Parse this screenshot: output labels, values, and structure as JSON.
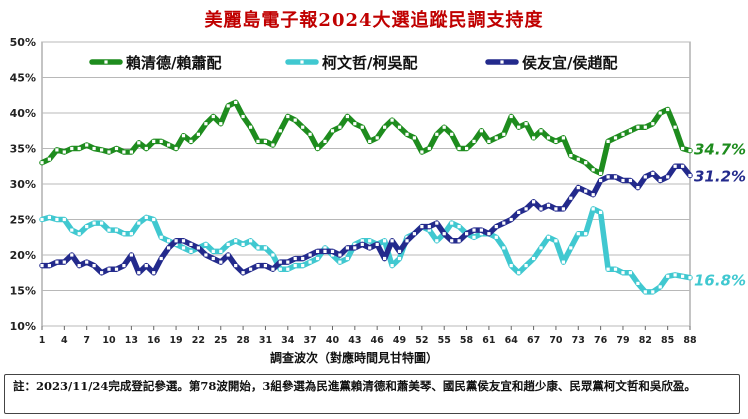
{
  "title": "美麗島電子報2024大選追蹤民調支持度",
  "note": "註：2023/11/24完成登記參選。第78波開始，3組參選為民進黨賴清德和蕭美琴、國民黨侯友宜和趙少康、民眾黨柯文哲和吳欣盈。",
  "chart_data": {
    "type": "line",
    "xlabel": "調查波次（對應時間見甘特圖）",
    "ylabel": "",
    "ylim": [
      10,
      50
    ],
    "yticks": [
      "10%",
      "15%",
      "20%",
      "25%",
      "30%",
      "35%",
      "40%",
      "45%",
      "50%"
    ],
    "xticks": [
      "1",
      "4",
      "7",
      "10",
      "13",
      "16",
      "19",
      "22",
      "25",
      "28",
      "31",
      "34",
      "37",
      "40",
      "43",
      "46",
      "49",
      "52",
      "55",
      "58",
      "61",
      "64",
      "67",
      "70",
      "73",
      "76",
      "79",
      "82",
      "85",
      "88"
    ],
    "grid": true,
    "legend": "top",
    "x": [
      1,
      2,
      3,
      4,
      5,
      6,
      7,
      8,
      9,
      10,
      11,
      12,
      13,
      14,
      15,
      16,
      17,
      18,
      19,
      20,
      21,
      22,
      23,
      24,
      25,
      26,
      27,
      28,
      29,
      30,
      31,
      32,
      33,
      34,
      35,
      36,
      37,
      38,
      39,
      40,
      41,
      42,
      43,
      44,
      45,
      46,
      47,
      48,
      49,
      50,
      51,
      52,
      53,
      54,
      55,
      56,
      57,
      58,
      59,
      60,
      61,
      62,
      63,
      64,
      65,
      66,
      67,
      68,
      69,
      70,
      71,
      72,
      73,
      74,
      75,
      76,
      77,
      78,
      79,
      80,
      81,
      82,
      83,
      84,
      85,
      86,
      87,
      88
    ],
    "series": [
      {
        "name": "賴清德/賴蕭配",
        "color": "#1e8c1e",
        "end_label": "34.7%",
        "values": [
          33,
          33.5,
          34.8,
          34.5,
          35,
          35,
          35.5,
          35,
          34.8,
          34.5,
          35,
          34.5,
          34.5,
          35.8,
          35,
          36,
          36,
          35.5,
          35,
          36.8,
          36,
          37,
          38.5,
          39.5,
          38.5,
          41,
          41.5,
          39.5,
          38,
          36,
          36,
          35.5,
          37.5,
          39.5,
          39,
          38,
          37,
          35,
          36,
          37.5,
          38,
          39.5,
          38.5,
          38,
          36,
          36.5,
          38,
          39,
          38,
          37,
          36.5,
          34.5,
          35,
          37,
          38,
          37,
          35,
          35,
          36,
          37.5,
          36,
          36.5,
          37,
          39.5,
          38,
          38.5,
          36.5,
          37.5,
          36.5,
          36,
          36.5,
          34,
          33.5,
          33,
          32,
          31.5,
          36,
          36.5,
          37,
          37.5,
          38,
          38,
          38.5,
          40,
          40.5,
          38,
          35,
          34.7
        ]
      },
      {
        "name": "柯文哲/柯吳配",
        "color": "#40c8d0",
        "end_label": "16.8%",
        "values": [
          25,
          25.3,
          25,
          25,
          23.5,
          23,
          24,
          24.5,
          24.5,
          23.5,
          23.5,
          23,
          23,
          24.5,
          25.3,
          25,
          22.5,
          22,
          21.5,
          21,
          20.5,
          21,
          21.5,
          20.5,
          20.5,
          21.5,
          22,
          21.5,
          22,
          21,
          21,
          20,
          18,
          18,
          18.5,
          18.5,
          19,
          19.5,
          21,
          20,
          19,
          19.5,
          21.5,
          22,
          22,
          21.5,
          22,
          18.5,
          19.5,
          22.5,
          23,
          24,
          23.5,
          22,
          23,
          24.5,
          24,
          23,
          22.5,
          23,
          23,
          22.5,
          21,
          18.5,
          17.5,
          18.5,
          19.5,
          21,
          22.5,
          22,
          19,
          21,
          23,
          23,
          26.5,
          26,
          18,
          18,
          17.5,
          17.5,
          16,
          14.8,
          14.8,
          15.5,
          17,
          17.2,
          17,
          16.8
        ]
      },
      {
        "name": "侯友宜/侯趙配",
        "color": "#232a8c",
        "end_label": "31.2%",
        "values": [
          18.5,
          18.5,
          19,
          19,
          20,
          18.5,
          19,
          18.5,
          17.5,
          18,
          18,
          18.5,
          20,
          17.5,
          18.5,
          17.5,
          19.5,
          21,
          22,
          22,
          21.5,
          21,
          20,
          19.5,
          19,
          20,
          18.5,
          17.5,
          18,
          18.5,
          18.5,
          18,
          19,
          19,
          19.5,
          19.5,
          20,
          20.5,
          20.5,
          20.5,
          20,
          21,
          21,
          21.5,
          21,
          21.5,
          19.5,
          22,
          20.5,
          22,
          23,
          24,
          24,
          24.5,
          23,
          22,
          22,
          23,
          23.5,
          23.5,
          23,
          24,
          24.5,
          25,
          26,
          26.5,
          27.5,
          26.5,
          27,
          26.5,
          26.5,
          28,
          29.5,
          29,
          28.5,
          30.5,
          31,
          31,
          30.5,
          30.5,
          29.5,
          31,
          31.5,
          30.5,
          31,
          32.5,
          32.5,
          31.2
        ]
      }
    ]
  }
}
